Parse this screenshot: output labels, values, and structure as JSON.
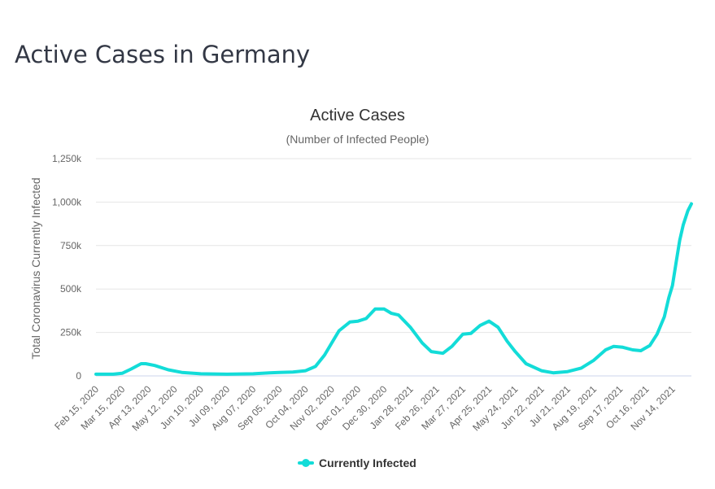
{
  "page_title": "Active Cases in Germany",
  "colors": {
    "series": "#13dcd8",
    "grid": "#e6e6e6",
    "axis_line": "#ccd6eb",
    "tick_text": "#666666"
  },
  "chart_data": {
    "type": "line",
    "title": "Active Cases",
    "subtitle": "(Number of Infected People)",
    "ylabel": "Total Coronavirus Currently Infected",
    "xlabel": "",
    "ylim": [
      0,
      1250000
    ],
    "y_ticks": [
      0,
      250000,
      500000,
      750000,
      1000000,
      1250000
    ],
    "y_tick_labels": [
      "0",
      "250k",
      "500k",
      "750k",
      "1,000k",
      "1,250k"
    ],
    "x_tick_labels": [
      "Feb 15, 2020",
      "Mar 15, 2020",
      "Apr 13, 2020",
      "May 12, 2020",
      "Jun 10, 2020",
      "Jul 09, 2020",
      "Aug 07, 2020",
      "Sep 05, 2020",
      "Oct 04, 2020",
      "Nov 02, 2020",
      "Dec 01, 2020",
      "Dec 30, 2020",
      "Jan 28, 2021",
      "Feb 26, 2021",
      "Mar 27, 2021",
      "Apr 25, 2021",
      "May 24, 2021",
      "Jun 22, 2021",
      "Jul 21, 2021",
      "Aug 19, 2021",
      "Sep 17, 2021",
      "Oct 16, 2021",
      "Nov 14, 2021"
    ],
    "x_start": "2020-02-15",
    "x_end": "2021-12-05",
    "grid": true,
    "legend_position": "bottom-center",
    "series": [
      {
        "name": "Currently Infected",
        "points": [
          [
            "2020-02-15",
            10000
          ],
          [
            "2020-03-05",
            10000
          ],
          [
            "2020-03-15",
            15000
          ],
          [
            "2020-03-25",
            40000
          ],
          [
            "2020-04-05",
            70000
          ],
          [
            "2020-04-10",
            70000
          ],
          [
            "2020-04-20",
            60000
          ],
          [
            "2020-05-05",
            35000
          ],
          [
            "2020-05-20",
            20000
          ],
          [
            "2020-06-10",
            12000
          ],
          [
            "2020-07-09",
            10000
          ],
          [
            "2020-08-07",
            12000
          ],
          [
            "2020-08-25",
            18000
          ],
          [
            "2020-09-05",
            20000
          ],
          [
            "2020-09-20",
            22000
          ],
          [
            "2020-10-04",
            30000
          ],
          [
            "2020-10-15",
            55000
          ],
          [
            "2020-10-25",
            120000
          ],
          [
            "2020-11-02",
            190000
          ],
          [
            "2020-11-10",
            260000
          ],
          [
            "2020-11-22",
            310000
          ],
          [
            "2020-12-01",
            315000
          ],
          [
            "2020-12-10",
            330000
          ],
          [
            "2020-12-20",
            385000
          ],
          [
            "2020-12-30",
            385000
          ],
          [
            "2021-01-07",
            360000
          ],
          [
            "2021-01-15",
            350000
          ],
          [
            "2021-01-28",
            280000
          ],
          [
            "2021-02-10",
            190000
          ],
          [
            "2021-02-20",
            140000
          ],
          [
            "2021-03-05",
            130000
          ],
          [
            "2021-03-15",
            170000
          ],
          [
            "2021-03-27",
            240000
          ],
          [
            "2021-04-05",
            245000
          ],
          [
            "2021-04-15",
            290000
          ],
          [
            "2021-04-25",
            315000
          ],
          [
            "2021-05-05",
            280000
          ],
          [
            "2021-05-15",
            200000
          ],
          [
            "2021-05-24",
            140000
          ],
          [
            "2021-06-05",
            70000
          ],
          [
            "2021-06-22",
            30000
          ],
          [
            "2021-07-05",
            18000
          ],
          [
            "2021-07-21",
            25000
          ],
          [
            "2021-08-05",
            45000
          ],
          [
            "2021-08-19",
            90000
          ],
          [
            "2021-09-01",
            150000
          ],
          [
            "2021-09-10",
            170000
          ],
          [
            "2021-09-20",
            165000
          ],
          [
            "2021-10-01",
            150000
          ],
          [
            "2021-10-10",
            145000
          ],
          [
            "2021-10-20",
            175000
          ],
          [
            "2021-10-28",
            240000
          ],
          [
            "2021-11-05",
            340000
          ],
          [
            "2021-11-10",
            450000
          ],
          [
            "2021-11-14",
            520000
          ],
          [
            "2021-11-18",
            650000
          ],
          [
            "2021-11-22",
            780000
          ],
          [
            "2021-11-26",
            870000
          ],
          [
            "2021-12-01",
            950000
          ],
          [
            "2021-12-05",
            990000
          ]
        ]
      }
    ]
  }
}
